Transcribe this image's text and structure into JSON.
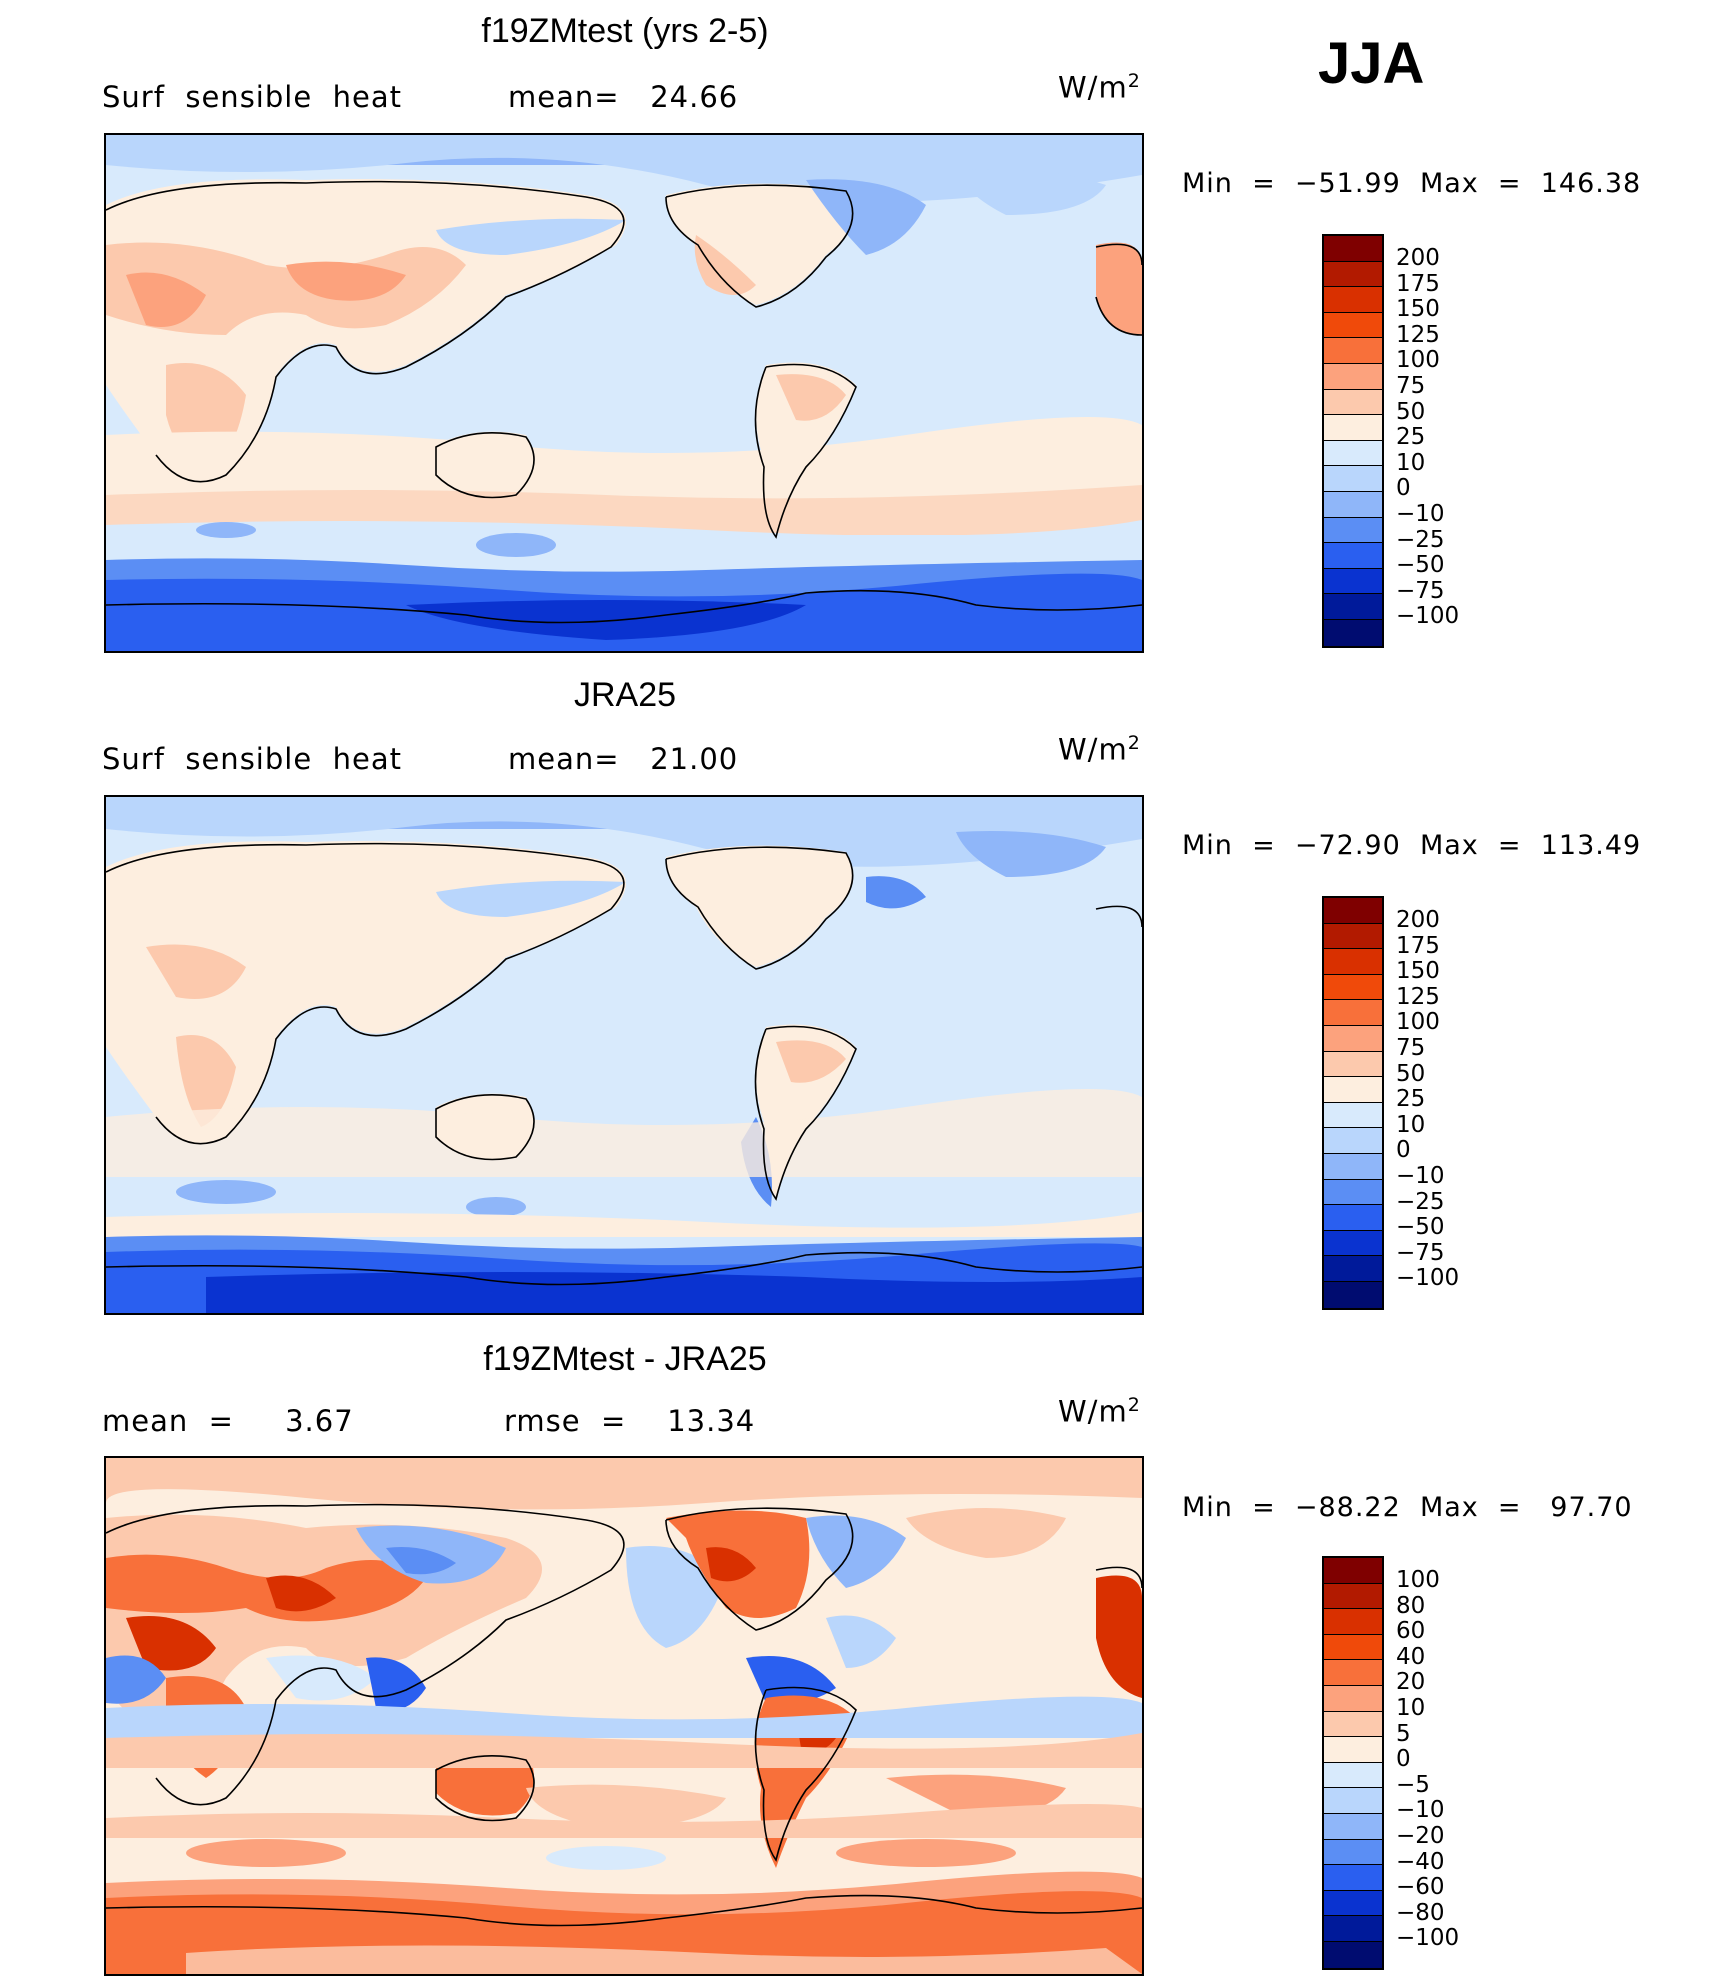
{
  "season": "JJA",
  "units_base": "W/m",
  "units_exp": "2",
  "panels": [
    {
      "title": "f19ZMtest (yrs 2-5)",
      "left_label": "Surf  sensible  heat",
      "center_label": "mean=   24.66",
      "minmax": "Min  =  −51.99  Max  =  146.38",
      "levels": [
        "200",
        "175",
        "150",
        "125",
        "100",
        "75",
        "50",
        "25",
        "10",
        "0",
        "−10",
        "−25",
        "−50",
        "−75",
        "−100"
      ]
    },
    {
      "title": "JRA25",
      "left_label": "Surf  sensible  heat",
      "center_label": "mean=   21.00",
      "minmax": "Min  =  −72.90  Max  =  113.49",
      "levels": [
        "200",
        "175",
        "150",
        "125",
        "100",
        "75",
        "50",
        "25",
        "10",
        "0",
        "−10",
        "−25",
        "−50",
        "−75",
        "−100"
      ]
    },
    {
      "title": "f19ZMtest - JRA25",
      "left_label": "mean  =     3.67",
      "center_label": "rmse  =    13.34",
      "minmax": "Min  =  −88.22  Max  =   97.70",
      "levels": [
        "100",
        "80",
        "60",
        "40",
        "20",
        "10",
        "5",
        "0",
        "−5",
        "−10",
        "−20",
        "−40",
        "−60",
        "−80",
        "−100"
      ]
    }
  ],
  "colorbar_colors": [
    "#7f0000",
    "#b21a00",
    "#d93000",
    "#f04a0a",
    "#f8703a",
    "#fca27d",
    "#fcc9ad",
    "#fdeedf",
    "#d8eafc",
    "#b9d6fc",
    "#8fb6f9",
    "#5b8ef4",
    "#2a5ff0",
    "#0a33d0",
    "#001a9a",
    "#000c70"
  ],
  "map_colors": {
    "ocean_base": "#d8eafc",
    "weak_neg": "#b9d6fc",
    "mid_neg": "#8fb6f9",
    "strong_neg": "#5b8ef4",
    "vstrong_neg": "#2a5ff0",
    "deep_neg": "#0a33d0",
    "weak_pos": "#fdeedf",
    "mid_pos": "#fcc9ad",
    "strong_pos": "#fca27d",
    "vstrong_pos": "#f8703a",
    "hot_pos": "#d93000"
  }
}
